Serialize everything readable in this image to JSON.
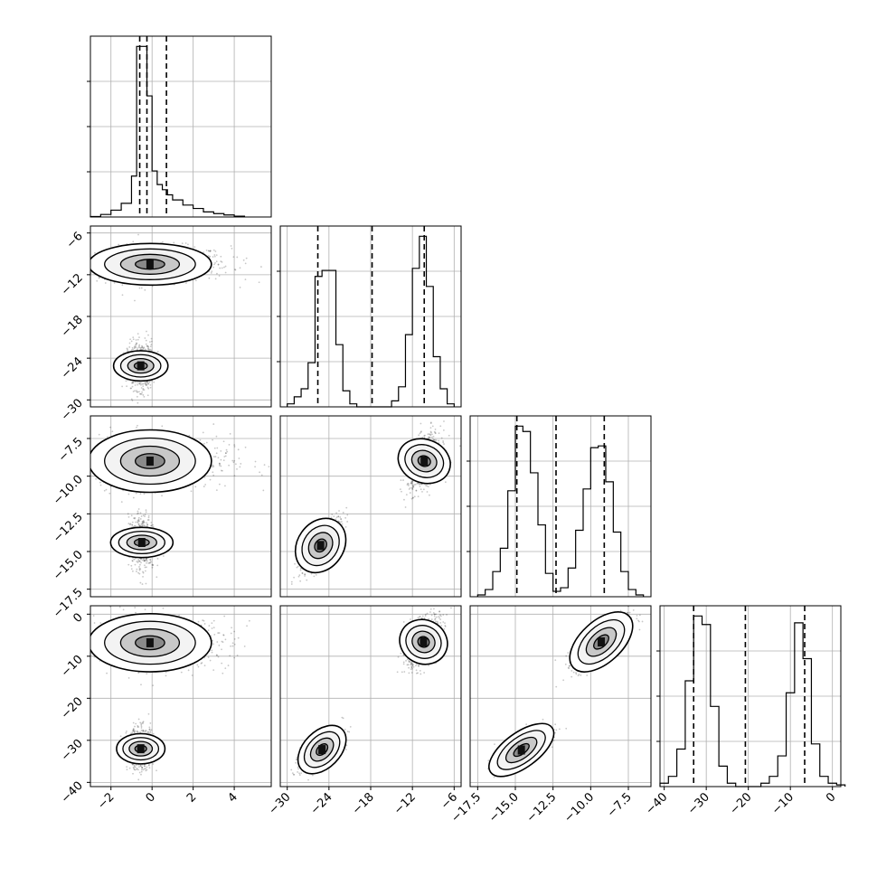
{
  "chart_data": {
    "type": "corner",
    "n_params": 4,
    "title": "",
    "grid": true,
    "params": [
      {
        "range": [
          -3,
          5.8
        ],
        "ticks": [
          -2,
          0,
          2,
          4
        ],
        "tick_labels": [
          "−2",
          "0",
          "2",
          "4"
        ],
        "quantiles": [
          -0.6,
          -0.25,
          0.7
        ]
      },
      {
        "range": [
          -31,
          -5
        ],
        "ticks": [
          -30,
          -24,
          -18,
          -12,
          -6
        ],
        "tick_labels": [
          "−30",
          "−24",
          "−18",
          "−12",
          "−6"
        ],
        "quantiles": [
          -25.6,
          -17.8,
          -10.3
        ]
      },
      {
        "range": [
          -18,
          -6
        ],
        "ticks": [
          -17.5,
          -15.0,
          -12.5,
          -10.0,
          -7.5
        ],
        "tick_labels": [
          "−17.5",
          "−15.0",
          "−12.5",
          "−10.0",
          "−7.5"
        ],
        "quantiles": [
          -14.9,
          -12.3,
          -9.1
        ]
      },
      {
        "range": [
          -41,
          2
        ],
        "ticks": [
          -40,
          -30,
          -20,
          -10,
          0
        ],
        "tick_labels": [
          "−40",
          "−30",
          "−20",
          "−10",
          "0"
        ],
        "quantiles": [
          -33.0,
          -20.7,
          -6.6
        ]
      }
    ],
    "histograms": [
      {
        "bins": [
          -3,
          -2.5,
          -2,
          -1.5,
          -1,
          -0.75,
          -0.5,
          -0.25,
          0,
          0.25,
          0.5,
          0.75,
          1,
          1.5,
          2,
          2.5,
          3,
          3.5,
          4,
          4.5
        ],
        "counts": [
          0.3,
          1.5,
          4,
          8,
          24,
          100,
          100,
          71,
          27,
          19,
          16,
          13,
          10,
          7,
          5,
          3,
          2,
          1.2,
          0.5
        ]
      },
      {
        "bins": [
          -30,
          -29,
          -28,
          -27,
          -26,
          -25,
          -24,
          -23,
          -22,
          -21,
          -20,
          -15,
          -14,
          -13,
          -12,
          -11,
          -10,
          -9,
          -8,
          -7,
          -6
        ],
        "counts": [
          1.5,
          5,
          9,
          22,
          65,
          68,
          68,
          31,
          8,
          1.5,
          0,
          3,
          10,
          36,
          69,
          85,
          60,
          25,
          9,
          1.5
        ]
      },
      {
        "bins": [
          -17.5,
          -17,
          -16.5,
          -16,
          -15.5,
          -15,
          -14.5,
          -14,
          -13.5,
          -13,
          -12.5,
          -12,
          -11.5,
          -11,
          -10.5,
          -10,
          -9.5,
          -9,
          -8.5,
          -8,
          -7.5,
          -7,
          -6.5
        ],
        "counts": [
          1,
          4,
          14,
          27,
          59,
          95,
          92,
          69,
          40,
          13,
          3,
          5,
          16,
          37,
          60,
          83,
          84,
          64,
          36,
          14,
          4,
          1
        ]
      },
      {
        "bins": [
          -41,
          -39,
          -37,
          -35,
          -33,
          -31,
          -29,
          -27,
          -25,
          -23,
          -21,
          -19,
          -17,
          -15,
          -13,
          -11,
          -9,
          -7,
          -5,
          -3,
          -1,
          1,
          3
        ],
        "counts": [
          2,
          6,
          22,
          62,
          100,
          95,
          47,
          12,
          2,
          0,
          0,
          0,
          2,
          6,
          18,
          55,
          96,
          75,
          25,
          6,
          2,
          1
        ]
      }
    ],
    "pairs": [
      {
        "x_param": 0,
        "y_param": 1,
        "clusters": [
          {
            "cx": -0.1,
            "cy": -10.5,
            "sx": 1.3,
            "sy": 1.3,
            "rho": 0.0,
            "weight": 0.55,
            "tail_x": 1.5
          },
          {
            "cx": -0.55,
            "cy": -25.1,
            "sx": 0.32,
            "sy": 1.7,
            "rho": 0.0,
            "weight": 0.45
          }
        ]
      },
      {
        "x_param": 0,
        "y_param": 2,
        "clusters": [
          {
            "cx": -0.1,
            "cy": -9.0,
            "sx": 1.3,
            "sy": 0.9,
            "rho": 0.0,
            "weight": 0.55,
            "tail_x": 1.5
          },
          {
            "cx": -0.5,
            "cy": -14.4,
            "sx": 0.32,
            "sy": 0.9,
            "rho": 0.0,
            "weight": 0.45
          }
        ]
      },
      {
        "x_param": 1,
        "y_param": 2,
        "clusters": [
          {
            "cx": -10.3,
            "cy": -9.0,
            "sx": 1.2,
            "sy": 0.9,
            "rho": 0.45,
            "weight": 0.55
          },
          {
            "cx": -25.2,
            "cy": -14.6,
            "sx": 1.5,
            "sy": 0.9,
            "rho": 0.75,
            "weight": 0.45
          }
        ]
      },
      {
        "x_param": 0,
        "y_param": 3,
        "clusters": [
          {
            "cx": -0.1,
            "cy": -6.8,
            "sx": 1.3,
            "sy": 3.0,
            "rho": 0.0,
            "weight": 0.55,
            "tail_x": 1.5
          },
          {
            "cx": -0.55,
            "cy": -32.0,
            "sx": 0.32,
            "sy": 2.5,
            "rho": 0.0,
            "weight": 0.45
          }
        ]
      },
      {
        "x_param": 1,
        "y_param": 3,
        "clusters": [
          {
            "cx": -10.4,
            "cy": -6.6,
            "sx": 1.2,
            "sy": 3.0,
            "rho": 0.5,
            "weight": 0.55
          },
          {
            "cx": -25.0,
            "cy": -32.2,
            "sx": 1.5,
            "sy": 2.5,
            "rho": 0.7,
            "weight": 0.45
          }
        ]
      },
      {
        "x_param": 2,
        "y_param": 3,
        "clusters": [
          {
            "cx": -9.3,
            "cy": -6.6,
            "sx": 0.9,
            "sy": 3.0,
            "rho": 0.8,
            "weight": 0.55
          },
          {
            "cx": -14.6,
            "cy": -32.3,
            "sx": 0.9,
            "sy": 2.5,
            "rho": 0.8,
            "weight": 0.45
          }
        ]
      }
    ]
  }
}
